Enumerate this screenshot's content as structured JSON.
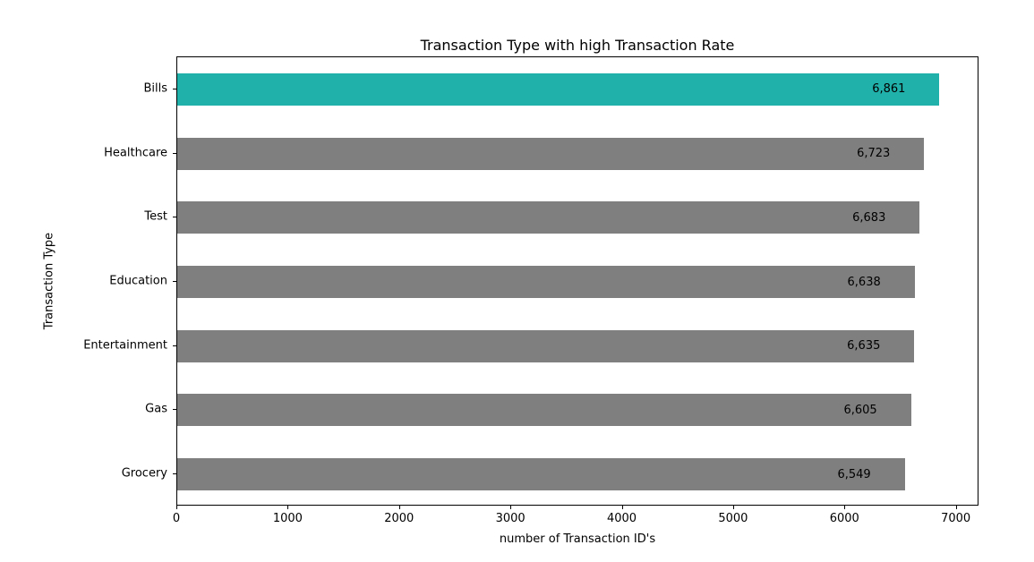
{
  "chart_data": {
    "type": "bar",
    "orientation": "horizontal",
    "title": "Transaction Type with high Transaction Rate",
    "xlabel": "number of Transaction ID's",
    "ylabel": "Transaction Type",
    "categories": [
      "Bills",
      "Healthcare",
      "Test",
      "Education",
      "Entertainment",
      "Gas",
      "Grocery"
    ],
    "values": [
      6861,
      6723,
      6683,
      6638,
      6635,
      6605,
      6549
    ],
    "value_labels": [
      "6,861",
      "6,723",
      "6,683",
      "6,638",
      "6,635",
      "6,605",
      "6,549"
    ],
    "x_ticks": [
      0,
      1000,
      2000,
      3000,
      4000,
      5000,
      6000,
      7000
    ],
    "x_tick_labels": [
      "0",
      "1000",
      "2000",
      "3000",
      "4000",
      "5000",
      "6000",
      "7000"
    ],
    "xlim": [
      0,
      7204
    ],
    "grid": false,
    "legend_position": "none",
    "highlight_index": 0,
    "colors": {
      "highlight_bar": "#20b2aa",
      "default_bar": "#7f7f7f",
      "text": "#000000",
      "frame": "#000000",
      "background": "#ffffff"
    }
  }
}
